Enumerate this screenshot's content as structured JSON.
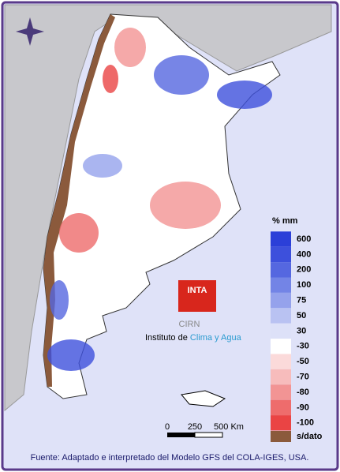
{
  "legend": {
    "title": "% mm",
    "items": [
      {
        "label": "600",
        "color": "#2b3fd8"
      },
      {
        "label": "400",
        "color": "#3d50dc"
      },
      {
        "label": "200",
        "color": "#5567e0"
      },
      {
        "label": "100",
        "color": "#7384e6"
      },
      {
        "label": "75",
        "color": "#95a2ec"
      },
      {
        "label": "50",
        "color": "#b9c2f2"
      },
      {
        "label": "30",
        "color": "#dde1f8"
      },
      {
        "label": "-30",
        "color": "#ffffff"
      },
      {
        "label": "-50",
        "color": "#fbdada"
      },
      {
        "label": "-70",
        "color": "#f7bcbc"
      },
      {
        "label": "-80",
        "color": "#f29494"
      },
      {
        "label": "-90",
        "color": "#ee6c6c"
      },
      {
        "label": "-100",
        "color": "#ea4444"
      }
    ],
    "no_data": "s/dato"
  },
  "scale": {
    "labels": [
      "0",
      "250",
      "500 Km"
    ]
  },
  "logo": {
    "name": "INTA",
    "center": "CIRN",
    "institute_prefix": "Instituto de",
    "institute_highlight": "Clima y Agua"
  },
  "footer": "Fuente: Adaptado e interpretado del Modelo GFS del COLA-IGES, USA."
}
